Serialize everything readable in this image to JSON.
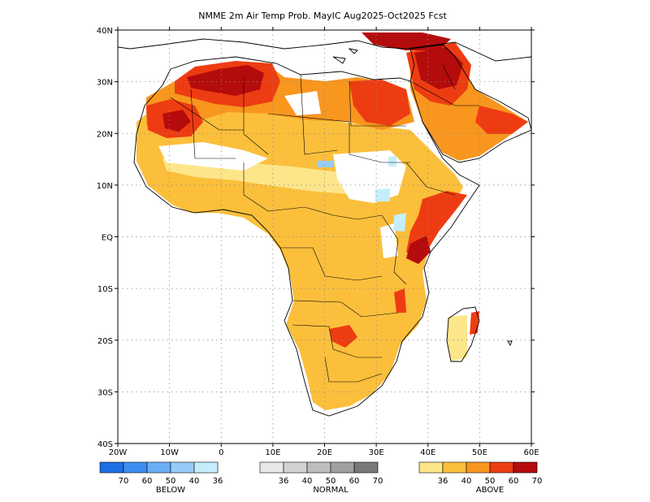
{
  "title": "NMME 2m Air Temp Prob. MayIC  Aug2025-Oct2025 Fcst",
  "map": {
    "lon_range": [
      -20,
      60
    ],
    "lat_range": [
      -40,
      40
    ],
    "x_ticks": [
      "20W",
      "10W",
      "0",
      "10E",
      "20E",
      "30E",
      "40E",
      "50E",
      "60E"
    ],
    "y_ticks": [
      "40N",
      "30N",
      "20N",
      "10N",
      "EQ",
      "10S",
      "20S",
      "30S",
      "40S"
    ],
    "grid": true
  },
  "legend": {
    "below": {
      "label": "BELOW",
      "values": [
        "70",
        "60",
        "50",
        "40",
        "36"
      ],
      "colors": [
        "#1e6fe6",
        "#3c8ef0",
        "#6aaef6",
        "#98ccf8",
        "#c4eefc"
      ]
    },
    "normal": {
      "label": "NORMAL",
      "values": [
        "36",
        "40",
        "50",
        "60",
        "70"
      ],
      "colors": [
        "#e8e8e8",
        "#d2d2d2",
        "#bebebe",
        "#a0a0a0",
        "#787878"
      ]
    },
    "above": {
      "label": "ABOVE",
      "values": [
        "36",
        "40",
        "50",
        "60",
        "70"
      ],
      "colors": [
        "#fde68a",
        "#fbbf3c",
        "#f8961e",
        "#ee3c12",
        "#b40c0c"
      ]
    }
  }
}
